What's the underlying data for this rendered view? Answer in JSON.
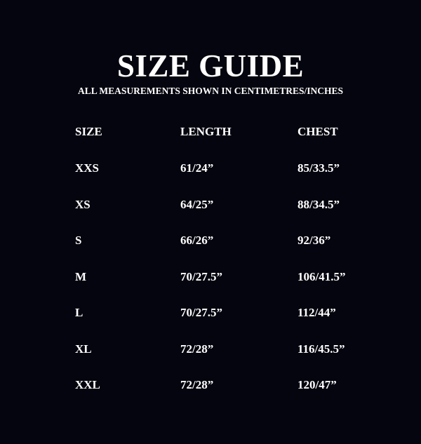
{
  "title": "SIZE GUIDE",
  "subtitle": "ALL MEASUREMENTS SHOWN IN CENTIMETRES/INCHES",
  "headers": [
    "SIZE",
    "LENGTH",
    "CHEST"
  ],
  "rows": [
    [
      "XXS",
      "61/24”",
      "85/33.5”"
    ],
    [
      "XS",
      "64/25”",
      "88/34.5”"
    ],
    [
      "S",
      "66/26”",
      "92/36”"
    ],
    [
      "M",
      "70/27.5”",
      "106/41.5”"
    ],
    [
      "L",
      "70/27.5”",
      "112/44”"
    ],
    [
      "XL",
      "72/28”",
      "116/45.5”"
    ],
    [
      "XXL",
      "72/28”",
      "120/47”"
    ]
  ]
}
